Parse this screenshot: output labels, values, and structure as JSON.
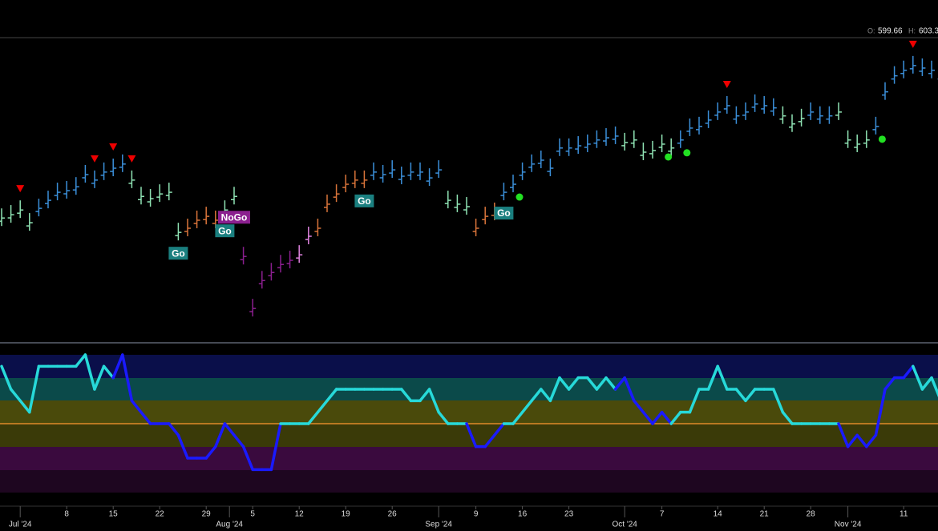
{
  "chart_data": {
    "type": "ohlc",
    "header": [
      {
        "label": "O:",
        "value": "599.66"
      },
      {
        "label": "H:",
        "value": "603.3"
      }
    ],
    "ylim": [
      502,
      612
    ],
    "values": [
      547.1,
      548.3,
      550.0,
      545.4,
      550.6,
      553.5,
      556.4,
      557.0,
      558.4,
      562.8,
      560.8,
      563.7,
      565.1,
      566.6,
      560.8,
      554.9,
      554.1,
      555.8,
      556.4,
      541.9,
      543.4,
      546.3,
      547.7,
      546.3,
      550.0,
      554.9,
      533.2,
      514.4,
      524.5,
      527.4,
      530.3,
      531.8,
      533.8,
      540.5,
      543.4,
      552.1,
      555.8,
      559.3,
      560.8,
      560.8,
      563.7,
      562.8,
      564.5,
      562.2,
      563.7,
      563.7,
      561.6,
      564.5,
      553.5,
      552.1,
      551.2,
      543.4,
      547.7,
      549.2,
      556.4,
      559.3,
      563.7,
      566.6,
      568.0,
      565.1,
      572.4,
      572.4,
      573.2,
      573.8,
      575.3,
      576.1,
      576.7,
      574.4,
      575.3,
      570.9,
      571.5,
      573.8,
      572.4,
      575.3,
      579.6,
      580.2,
      582.5,
      585.4,
      587.7,
      584.0,
      585.4,
      588.3,
      587.7,
      586.9,
      584.0,
      581.1,
      583.1,
      585.4,
      584.0,
      584.0,
      585.4,
      575.3,
      573.8,
      575.3,
      580.2,
      592.7,
      598.5,
      600.5,
      602.2,
      601.3,
      600.5,
      598.5
    ],
    "palette": {
      "b": "#3b8fd9",
      "a": "#8fe3b4",
      "o": "#d9743a",
      "p": "#e083e0",
      "m": "#8b1f8f",
      "c": "#27d9d9",
      "d": "#1a1aff"
    },
    "bar_colors": "aaaabbbbbbbbbbaaaaaaooooaammmmmmppoooooobbbbbbbbaaaooobbbbbbbbbbbbbaaaaaabbbbbbbbbbbaaabbbaaaabbbbbbbb",
    "sell_markers": [
      2,
      10,
      12,
      14,
      78,
      98
    ],
    "buy_markers": [
      55,
      71,
      73,
      94
    ],
    "signals": [
      {
        "bar": 19,
        "label": "Go",
        "color": "#1a7f7f"
      },
      {
        "bar": 24,
        "label": "Go",
        "color": "#1a7f7f"
      },
      {
        "bar": 25,
        "label": "NoGo",
        "color": "#8b1f8f"
      },
      {
        "bar": 39,
        "label": "Go",
        "color": "#1a7f7f"
      },
      {
        "bar": 54,
        "label": "Go",
        "color": "#1a7f7f"
      }
    ],
    "oscillator": {
      "ylim": [
        -6,
        6
      ],
      "values": [
        5,
        3,
        2,
        1,
        5,
        5,
        5,
        5,
        5,
        6,
        3,
        5,
        4,
        6,
        2,
        1,
        0,
        0,
        0,
        -1,
        -3,
        -3,
        -3,
        -2,
        0,
        -1,
        -2,
        -4,
        -4,
        -4,
        0,
        0,
        0,
        0,
        1,
        2,
        3,
        3,
        3,
        3,
        3,
        3,
        3,
        3,
        2,
        2,
        3,
        1,
        0,
        0,
        0,
        -2,
        -2,
        -1,
        0,
        0,
        1,
        2,
        3,
        2,
        4,
        3,
        4,
        4,
        3,
        4,
        3,
        4,
        2,
        1,
        0,
        1,
        0,
        1,
        1,
        3,
        3,
        5,
        3,
        3,
        2,
        3,
        3,
        3,
        1,
        0,
        0,
        0,
        0,
        0,
        0,
        -2,
        -1,
        -2,
        -1,
        3,
        4,
        4,
        5,
        3,
        4,
        2
      ],
      "colors": "cccccccccccccddddddddddddddddddccccccccccccccccccccddddccccccccccccddddddccccccccccccccccccddddddddccc"
    },
    "day_ticks": [
      {
        "value": 7,
        "label": "8"
      },
      {
        "value": 12,
        "label": "15"
      },
      {
        "value": 17,
        "label": "22"
      },
      {
        "value": 22,
        "label": "29"
      },
      {
        "value": 27,
        "label": "5"
      },
      {
        "value": 32,
        "label": "12"
      },
      {
        "value": 37,
        "label": "19"
      },
      {
        "value": 42,
        "label": "26"
      },
      {
        "value": 51,
        "label": "9"
      },
      {
        "value": 56,
        "label": "16"
      },
      {
        "value": 61,
        "label": "23"
      },
      {
        "value": 71,
        "label": "7"
      },
      {
        "value": 77,
        "label": "14"
      },
      {
        "value": 82,
        "label": "21"
      },
      {
        "value": 87,
        "label": "28"
      },
      {
        "value": 97,
        "label": "11"
      }
    ],
    "month_ticks": [
      {
        "value": 2,
        "label": "Jul '24"
      },
      {
        "value": 24.5,
        "label": "Aug '24"
      },
      {
        "value": 47,
        "label": "Sep '24"
      },
      {
        "value": 67,
        "label": "Oct '24"
      },
      {
        "value": 91,
        "label": "Nov '24"
      }
    ]
  }
}
